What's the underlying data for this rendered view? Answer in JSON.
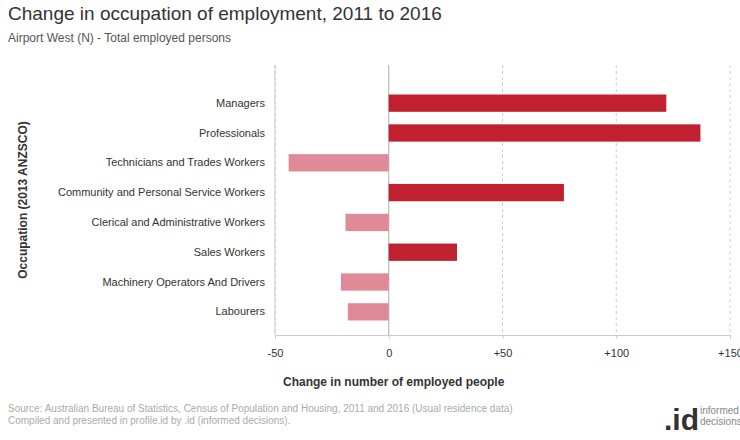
{
  "chart_data": {
    "type": "bar",
    "orientation": "horizontal",
    "title": "Change in occupation of employment, 2011 to 2016",
    "subtitle": "Airport West (N) - Total employed persons",
    "x_label": "Change in number of employed people",
    "y_label": "Occupation (2013 ANZSCO)",
    "categories": [
      "Managers",
      "Professionals",
      "Technicians and Trades Workers",
      "Community and Personal Service Workers",
      "Clerical and Administrative Workers",
      "Sales Workers",
      "Machinery Operators And Drivers",
      "Labourers"
    ],
    "values": [
      122,
      137,
      -44,
      77,
      -19,
      30,
      -21,
      -18
    ],
    "colors": [
      "#c0202f",
      "#c0202f",
      "#e08a97",
      "#c0202f",
      "#e08a97",
      "#c0202f",
      "#e08a97",
      "#e08a97"
    ],
    "xlim": [
      -50,
      150
    ],
    "xticks": [
      {
        "value": -50,
        "label": "-50"
      },
      0,
      {
        "value": 50,
        "label": "+50"
      },
      {
        "value": 100,
        "label": "+100"
      },
      {
        "value": 150,
        "label": "+150"
      }
    ],
    "grid": true,
    "source": [
      "Source: Australian Bureau of Statistics, Census of Population and Housing, 2011 and 2016 (Usual residence data)",
      "Compiled and presented in profile.id by .id (informed decisions)."
    ],
    "logo": {
      "mark": ".id",
      "text": "informed decisions"
    }
  }
}
